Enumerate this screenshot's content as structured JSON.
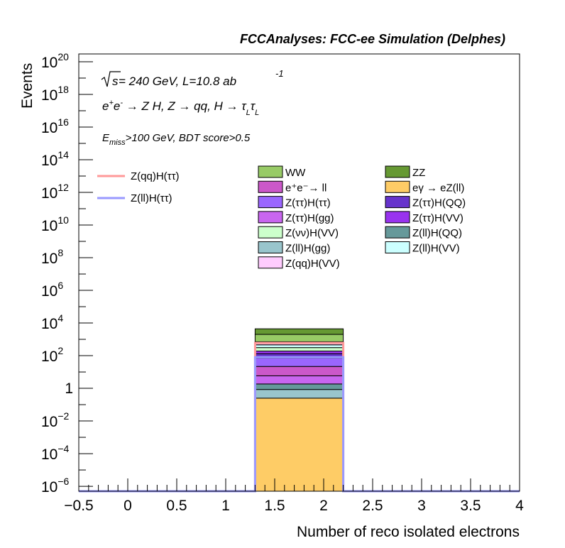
{
  "header": {
    "experiment": "FCCAnalyses: FCC-ee Simulation (Delphes)"
  },
  "annotations": {
    "energy_lumi_prefix": "s",
    "energy_lumi_rest": " = 240 GeV, L=10.8 ab",
    "lumi_exponent": "-1",
    "process": "e⁺e⁻ → Z H, Z → qq, H → τ_L τ_L",
    "process_parts": {
      "a": "e",
      "a_sup1": "+",
      "b": "e",
      "b_sup": "-",
      "c": " → Z H, Z  → qq, H  → τ",
      "c_sub": "L",
      "d": "τ",
      "d_sub": "L"
    },
    "selection_e": "E",
    "selection_sub": "miss",
    "selection_rest": ">100 GeV, BDT score>0.5"
  },
  "chart_data": {
    "type": "bar",
    "stacked": true,
    "log_y": true,
    "xlabel": "Number of reco isolated electrons",
    "ylabel": "Events",
    "xlim": [
      -0.5,
      4
    ],
    "ylim": [
      5e-07,
      3e+20
    ],
    "grid": false,
    "bin": [
      1.3,
      2.2
    ],
    "x_ticks": [
      "−0.5",
      "0",
      "0.5",
      "1",
      "1.5",
      "2",
      "2.5",
      "3",
      "3.5",
      "4"
    ],
    "x_tick_values": [
      -0.5,
      0,
      0.5,
      1,
      1.5,
      2,
      2.5,
      3,
      3.5,
      4
    ],
    "y_ticks": [
      {
        "v": 1e-06,
        "base": "10",
        "exp": "−6"
      },
      {
        "v": 0.0001,
        "base": "10",
        "exp": "−4"
      },
      {
        "v": 0.01,
        "base": "10",
        "exp": "−2"
      },
      {
        "v": 1,
        "base": "1",
        "exp": ""
      },
      {
        "v": 100.0,
        "base": "10",
        "exp": "2"
      },
      {
        "v": 10000.0,
        "base": "10",
        "exp": "4"
      },
      {
        "v": 1000000.0,
        "base": "10",
        "exp": "6"
      },
      {
        "v": 100000000.0,
        "base": "10",
        "exp": "8"
      },
      {
        "v": 10000000000.0,
        "base": "10",
        "exp": "10"
      },
      {
        "v": 1000000000000.0,
        "base": "10",
        "exp": "12"
      },
      {
        "v": 100000000000000.0,
        "base": "10",
        "exp": "14"
      },
      {
        "v": 1e+16,
        "base": "10",
        "exp": "16"
      },
      {
        "v": 1e+18,
        "base": "10",
        "exp": "18"
      },
      {
        "v": 1e+20,
        "base": "10",
        "exp": "20"
      }
    ],
    "stack": [
      {
        "name": "eγ → eZ(ll)",
        "color": "#fecc66",
        "value": 0.25
      },
      {
        "name": "Z(ll)H(gg)",
        "color": "#99c5cc",
        "value": 0.6
      },
      {
        "name": "Z(ll)H(QQ)",
        "color": "#66999a",
        "value": 1.0
      },
      {
        "name": "Z(ττ)H(gg)",
        "color": "#c966ef",
        "value": 4.0
      },
      {
        "name": "e⁺e⁻→ ll",
        "color": "#cb58c9",
        "value": 16
      },
      {
        "name": "Z(ττ)H(ττ)",
        "color": "#9a66fe",
        "value": 50
      },
      {
        "name": "Z(ττ)H(QQ)",
        "color": "#6633cc",
        "value": 60
      },
      {
        "name": "Z(ττ)H(VV)",
        "color": "#9933ef",
        "value": 60
      },
      {
        "name": "Z(νν)H(VV)",
        "color": "#ccffcb",
        "value": 120
      },
      {
        "name": "Z(ll)H(VV)",
        "color": "#ccffff",
        "value": 150
      },
      {
        "name": "Z(qq)H(VV)",
        "color": "#ffccfe",
        "value": 250
      },
      {
        "name": "WW",
        "color": "#98cb66",
        "value": 1300
      },
      {
        "name": "ZZ",
        "color": "#669933",
        "value": 2400
      }
    ],
    "signals": [
      {
        "name": "Z(qq)H(ττ)",
        "color": "#ff9999",
        "value": 600
      },
      {
        "name": "Z(ll)H(ττ)",
        "color": "#9999ff",
        "value": 80
      }
    ],
    "legend_fill_order": [
      [
        "WW",
        "ZZ"
      ],
      [
        "e⁺e⁻→ ll",
        "eγ → eZ(ll)"
      ],
      [
        "Z(ττ)H(ττ)",
        "Z(ττ)H(QQ)"
      ],
      [
        "Z(ττ)H(gg)",
        "Z(ττ)H(VV)"
      ],
      [
        "Z(νν)H(VV)",
        "Z(ll)H(QQ)"
      ],
      [
        "Z(ll)H(gg)",
        "Z(ll)H(VV)"
      ],
      [
        "Z(qq)H(VV)",
        null
      ]
    ],
    "legend_line_order": [
      "Z(qq)H(ττ)",
      "Z(ll)H(ττ)"
    ],
    "legend_placement": "upper-middle"
  }
}
